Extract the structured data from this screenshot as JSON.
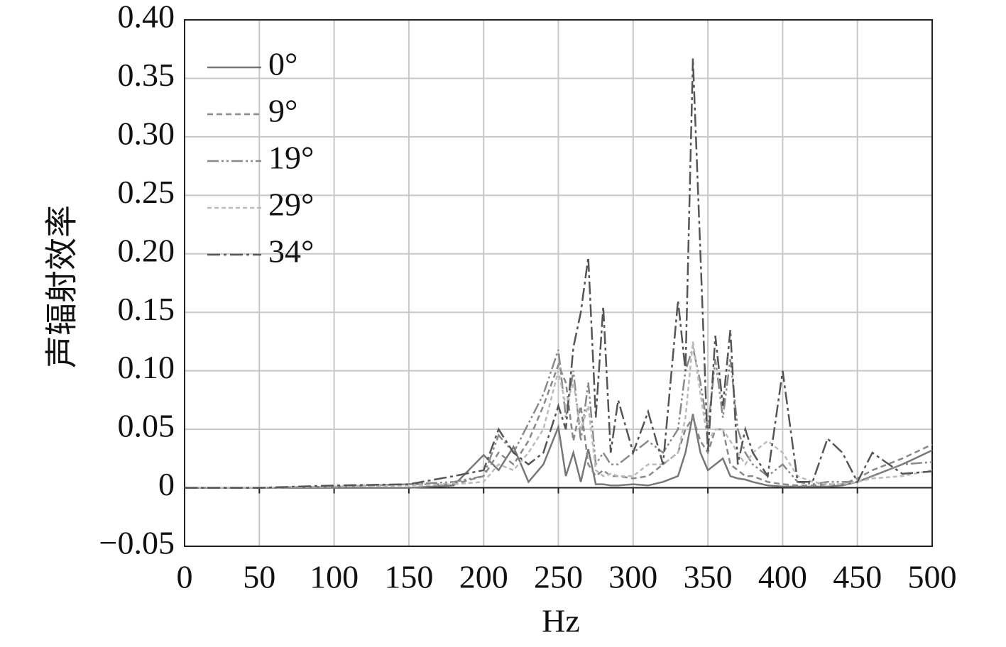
{
  "chart_data": {
    "type": "line",
    "y_label": "声辐射效率",
    "x_label": "Hz",
    "x": [
      0,
      50,
      100,
      150,
      180,
      200,
      210,
      220,
      230,
      240,
      250,
      255,
      260,
      265,
      270,
      275,
      280,
      285,
      290,
      300,
      310,
      320,
      330,
      335,
      340,
      345,
      350,
      355,
      360,
      365,
      370,
      375,
      380,
      390,
      400,
      410,
      420,
      430,
      440,
      450,
      460,
      480,
      500
    ],
    "series": [
      {
        "name": "0°",
        "color": "#777777",
        "values": [
          0,
          0,
          0,
          0,
          0.002,
          0.028,
          0.015,
          0.035,
          0.005,
          0.02,
          0.052,
          0.01,
          0.03,
          0.005,
          0.033,
          0.003,
          0.003,
          0.002,
          0.002,
          0.003,
          0.002,
          0.005,
          0.01,
          0.03,
          0.063,
          0.03,
          0.015,
          0.02,
          0.025,
          0.01,
          0.008,
          0.007,
          0.005,
          0.002,
          0.001,
          0.001,
          0.001,
          0.001,
          0.002,
          0.005,
          0.01,
          0.02,
          0.032
        ]
      },
      {
        "name": "9°",
        "color": "#888888",
        "values": [
          0,
          0,
          0.001,
          0.003,
          0.003,
          0.01,
          0.03,
          0.02,
          0.04,
          0.07,
          0.105,
          0.09,
          0.04,
          0.07,
          0.02,
          0.01,
          0.015,
          0.01,
          0.01,
          0.008,
          0.01,
          0.02,
          0.03,
          0.05,
          0.06,
          0.04,
          0.03,
          0.05,
          0.05,
          0.02,
          0.015,
          0.01,
          0.01,
          0.005,
          0.003,
          0.002,
          0.002,
          0.003,
          0.003,
          0.008,
          0.015,
          0.025,
          0.037
        ]
      },
      {
        "name": "19°",
        "color": "#8a8a8a",
        "values": [
          0,
          0,
          0.001,
          0.003,
          0.005,
          0.01,
          0.045,
          0.03,
          0.055,
          0.08,
          0.118,
          0.06,
          0.1,
          0.04,
          0.09,
          0.02,
          0.03,
          0.02,
          0.02,
          0.03,
          0.04,
          0.03,
          0.05,
          0.1,
          0.12,
          0.09,
          0.05,
          0.11,
          0.06,
          0.11,
          0.05,
          0.03,
          0.02,
          0.01,
          0.02,
          0.005,
          0.003,
          0.005,
          0.005,
          0.005,
          0.01,
          0.02,
          0.022
        ]
      },
      {
        "name": "29°",
        "color": "#bbbbbb",
        "values": [
          0,
          0,
          0.001,
          0.002,
          0.003,
          0.005,
          0.02,
          0.015,
          0.03,
          0.05,
          0.1,
          0.07,
          0.09,
          0.05,
          0.07,
          0.015,
          0.01,
          0.012,
          0.01,
          0.01,
          0.02,
          0.02,
          0.03,
          0.06,
          0.125,
          0.08,
          0.04,
          0.05,
          0.05,
          0.04,
          0.03,
          0.02,
          0.03,
          0.04,
          0.03,
          0.01,
          0.005,
          0.003,
          0.003,
          0.005,
          0.008,
          0.01,
          0.015
        ]
      },
      {
        "name": "34°",
        "color": "#555555",
        "values": [
          0,
          0,
          0.002,
          0.003,
          0.01,
          0.015,
          0.05,
          0.03,
          0.02,
          0.03,
          0.07,
          0.05,
          0.12,
          0.15,
          0.197,
          0.06,
          0.155,
          0.03,
          0.075,
          0.03,
          0.065,
          0.02,
          0.16,
          0.1,
          0.367,
          0.2,
          0.03,
          0.13,
          0.07,
          0.135,
          0.02,
          0.05,
          0.03,
          0.01,
          0.1,
          0.005,
          0.005,
          0.042,
          0.03,
          0.005,
          0.03,
          0.012,
          0.014
        ]
      }
    ],
    "xlim": [
      0,
      500
    ],
    "xticks": [
      0,
      50,
      100,
      150,
      200,
      250,
      300,
      350,
      400,
      450,
      500
    ],
    "ylim": [
      -0.05,
      0.4
    ],
    "yticks": [
      {
        "value": -0.05,
        "label": "−0.05"
      },
      0,
      0.05,
      {
        "value": 0.1,
        "label": "0.10"
      },
      0.15,
      {
        "value": 0.2,
        "label": "0.20"
      },
      0.25,
      {
        "value": 0.3,
        "label": "0.30"
      },
      0.35,
      {
        "value": 0.4,
        "label": "0.40"
      }
    ],
    "grid": true,
    "legend": "upper left"
  }
}
